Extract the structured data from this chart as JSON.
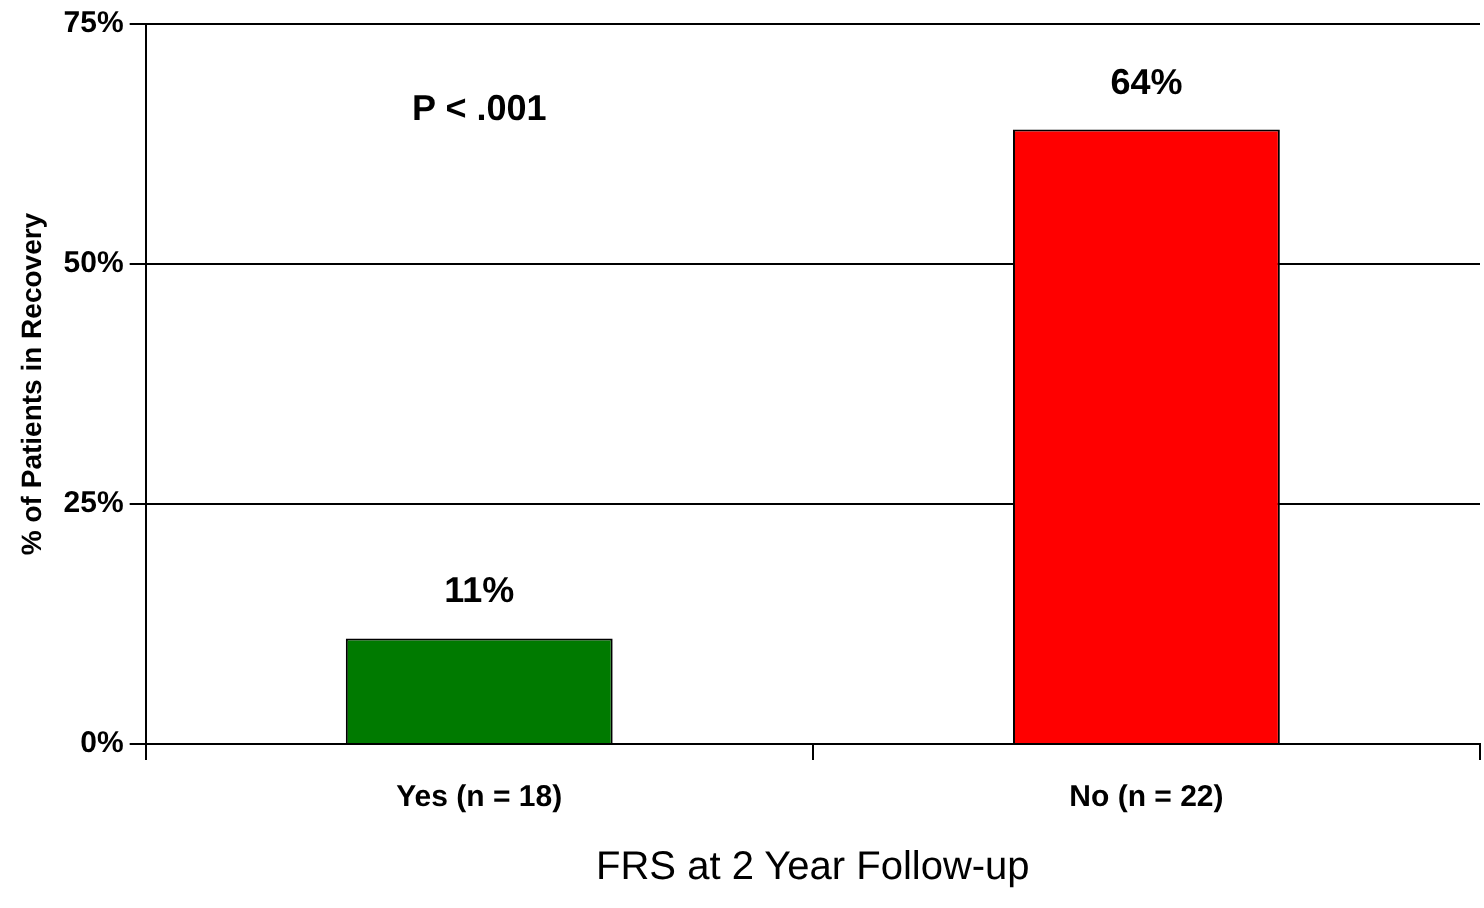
{
  "chart_data": {
    "type": "bar",
    "xlabel": "FRS at 2 Year Follow-up",
    "ylabel": "% of Patients in Recovery",
    "categories": [
      "Yes (n = 18)",
      "No (n = 22)"
    ],
    "values": [
      11,
      64
    ],
    "colors": [
      "#007a00",
      "#ff0000"
    ],
    "value_labels": [
      "11%",
      "64%"
    ],
    "ylim": [
      0,
      75
    ],
    "yticks": [
      {
        "value": 0,
        "label": "0%"
      },
      {
        "value": 25,
        "label": "25%"
      },
      {
        "value": 50,
        "label": "50%"
      },
      {
        "value": 75,
        "label": "75%"
      }
    ],
    "grid": "y",
    "legend": false,
    "annotations": [
      "P < .001"
    ]
  }
}
